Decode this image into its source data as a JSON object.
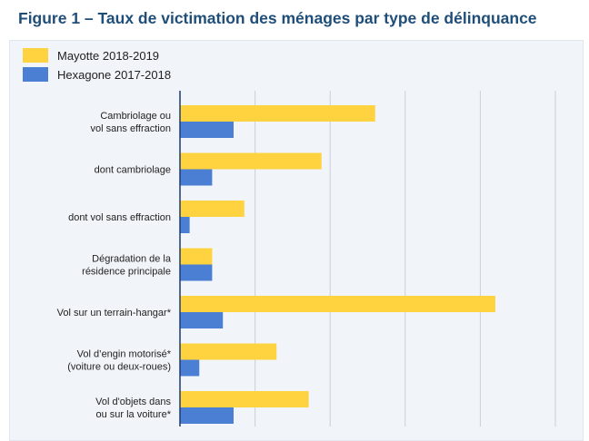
{
  "title": "Figure 1 – Taux de victimation des ménages par type de délinquance",
  "colors": {
    "series1": "#ffd23f",
    "series2": "#4a7fd4"
  },
  "chart_data": {
    "type": "bar",
    "orientation": "horizontal",
    "categories": [
      [
        "Cambriolage ou",
        "vol sans effraction"
      ],
      [
        "dont cambriolage"
      ],
      [
        "dont vol sans effraction"
      ],
      [
        "Dégradation de la",
        "résidence principale"
      ],
      [
        "Vol sur un terrain-hangar*"
      ],
      [
        "Vol d’engin motorisé*",
        "(voiture ou deux-roues)"
      ],
      [
        "Vol d'objets dans",
        "ou sur la voiture*"
      ]
    ],
    "series": [
      {
        "name": "Mayotte 2018-2019",
        "values": [
          9.1,
          6.6,
          3.0,
          1.5,
          14.7,
          4.5,
          6.0
        ]
      },
      {
        "name": "Hexagone 2017-2018",
        "values": [
          2.5,
          1.5,
          0.45,
          1.5,
          2.0,
          0.9,
          2.5
        ]
      }
    ],
    "xlim": [
      0,
      18
    ],
    "xgrid": [
      0,
      3.5,
      7,
      10.5,
      14,
      17.5
    ],
    "grid": true,
    "legend": "top-left"
  }
}
